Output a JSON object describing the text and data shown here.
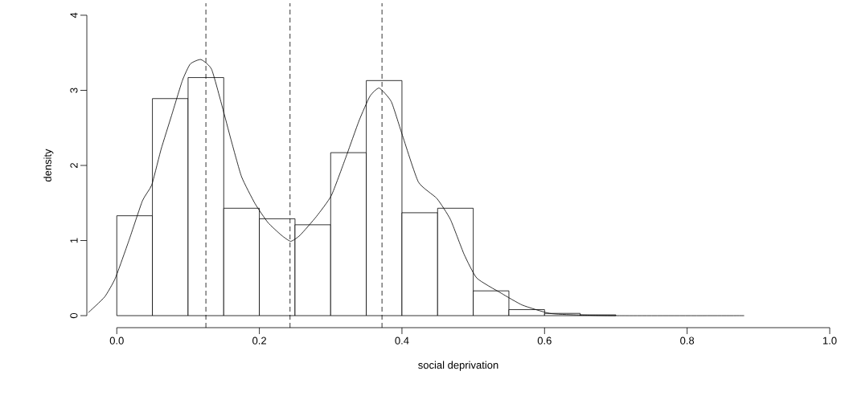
{
  "chart_data": {
    "type": "histogram",
    "xlabel": "social deprivation",
    "ylabel": "density",
    "bins": [
      0,
      0.05,
      0.1,
      0.15,
      0.2,
      0.25,
      0.3,
      0.35,
      0.4,
      0.45,
      0.5,
      0.55,
      0.6,
      0.65,
      0.7
    ],
    "values": [
      1.33,
      2.89,
      3.17,
      1.43,
      1.29,
      1.21,
      2.17,
      3.13,
      1.37,
      1.43,
      0.33,
      0.08,
      0.03,
      0.01
    ],
    "series": [
      {
        "type": "line",
        "color": "#000000",
        "x": [
          -0.04,
          -0.017,
          -0.002,
          0.017,
          0.036,
          0.049,
          0.062,
          0.077,
          0.092,
          0.103,
          0.118,
          0.133,
          0.148,
          0.16,
          0.175,
          0.194,
          0.212,
          0.231,
          0.244,
          0.257,
          0.28,
          0.301,
          0.321,
          0.34,
          0.355,
          0.368,
          0.385,
          0.4,
          0.423,
          0.449,
          0.468,
          0.487,
          0.505,
          0.539,
          0.569,
          0.607,
          0.644,
          0.7,
          0.88
        ],
        "values": [
          0.04,
          0.25,
          0.5,
          1.0,
          1.53,
          1.74,
          2.21,
          2.67,
          3.13,
          3.35,
          3.41,
          3.28,
          2.78,
          2.35,
          1.85,
          1.49,
          1.24,
          1.07,
          0.99,
          1.07,
          1.32,
          1.6,
          2.1,
          2.6,
          2.92,
          3.03,
          2.85,
          2.42,
          1.78,
          1.56,
          1.28,
          0.82,
          0.5,
          0.3,
          0.14,
          0.03,
          0.01,
          0,
          0
        ]
      }
    ],
    "ref_lines": [
      {
        "axis": "x",
        "value": 0.125,
        "line_style": "dashed"
      },
      {
        "axis": "x",
        "value": 0.243,
        "line_style": "dashed"
      },
      {
        "axis": "x",
        "value": 0.372,
        "line_style": "dashed"
      }
    ],
    "xlim": [
      -0.042,
      1.0
    ],
    "ylim": [
      -0.16,
      4.16
    ],
    "xticks": [
      {
        "value": 0,
        "label": "0.0"
      },
      0.2,
      0.4,
      0.6,
      0.8,
      {
        "value": 1,
        "label": "1.0"
      }
    ],
    "yticks": [
      0,
      1,
      2,
      3,
      4
    ],
    "grid": false
  }
}
